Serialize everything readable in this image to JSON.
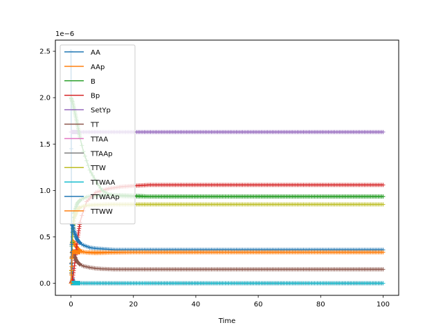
{
  "chart_data": {
    "type": "line",
    "title": "",
    "xlabel": "Time",
    "ylabel": "",
    "y_offset_label": "1e−6",
    "xlim": [
      -5,
      105
    ],
    "ylim": [
      -1.3e-07,
      2.62e-06
    ],
    "x_ticks": [
      0,
      20,
      40,
      60,
      80,
      100
    ],
    "x_tick_labels": [
      "0",
      "20",
      "40",
      "60",
      "80",
      "100"
    ],
    "y_ticks": [
      0.0,
      5e-07,
      1e-06,
      1.5e-06,
      2e-06,
      2.5e-06
    ],
    "y_tick_labels": [
      "0.0",
      "0.5",
      "1.0",
      "1.5",
      "2.0",
      "2.5"
    ],
    "grid": false,
    "legend": "upper-left",
    "series": [
      {
        "name": "AA",
        "color": "#1f77b4",
        "marker": "+",
        "x": [
          0,
          0.2,
          0.5,
          1,
          2,
          5,
          10,
          20,
          40,
          60,
          80,
          100
        ],
        "y": [
          2.5e-06,
          4e-07,
          5e-08,
          5e-09,
          1e-09,
          0.0,
          0.0,
          0.0,
          0.0,
          0.0,
          0.0,
          0.0
        ]
      },
      {
        "name": "AAp",
        "color": "#ff7f0e",
        "marker": "+",
        "x": [
          0,
          0.3,
          0.6,
          1,
          2,
          3,
          5,
          8,
          12,
          20,
          40,
          60,
          80,
          100
        ],
        "y": [
          0.0,
          4.2e-07,
          4.6e-07,
          4.3e-07,
          3.8e-07,
          3.5e-07,
          3.3e-07,
          3.25e-07,
          3.3e-07,
          3.35e-07,
          3.35e-07,
          3.35e-07,
          3.35e-07,
          3.35e-07
        ]
      },
      {
        "name": "B",
        "color": "#2ca02c",
        "marker": "+",
        "x": [
          0,
          0.5,
          1,
          2,
          3,
          5,
          8,
          12,
          16,
          20,
          25,
          40,
          60,
          80,
          100
        ],
        "y": [
          0.0,
          5.5e-07,
          7.5e-07,
          8.6e-07,
          9e-07,
          9.3e-07,
          9.45e-07,
          9.5e-07,
          9.5e-07,
          9.45e-07,
          9.35e-07,
          9.35e-07,
          9.35e-07,
          9.35e-07,
          9.35e-07
        ]
      },
      {
        "name": "Bp",
        "color": "#d62728",
        "marker": "+",
        "x": [
          0,
          0.5,
          1,
          2,
          3,
          5,
          8,
          12,
          16,
          20,
          25,
          40,
          60,
          80,
          100
        ],
        "y": [
          0.0,
          4e-08,
          1.6e-07,
          4.5e-07,
          6.8e-07,
          8.8e-07,
          9.8e-07,
          1.02e-06,
          1.04e-06,
          1.05e-06,
          1.06e-06,
          1.06e-06,
          1.06e-06,
          1.06e-06,
          1.06e-06
        ]
      },
      {
        "name": "SetYp",
        "color": "#9467bd",
        "marker": "+",
        "x": [
          0,
          20,
          40,
          60,
          80,
          100
        ],
        "y": [
          1.63e-06,
          1.63e-06,
          1.63e-06,
          1.63e-06,
          1.63e-06,
          1.63e-06
        ]
      },
      {
        "name": "TT",
        "color": "#8c564b",
        "marker": "+",
        "x": [
          0,
          0.3,
          0.6,
          1,
          1.5,
          2,
          3,
          4,
          6,
          8,
          10,
          14,
          20,
          40,
          60,
          80,
          100
        ],
        "y": [
          0.0,
          3.3e-07,
          3.5e-07,
          3e-07,
          2.6e-07,
          2.3e-07,
          2e-07,
          1.85e-07,
          1.7e-07,
          1.6e-07,
          1.55e-07,
          1.5e-07,
          1.5e-07,
          1.5e-07,
          1.5e-07,
          1.5e-07,
          1.5e-07
        ]
      },
      {
        "name": "TTAA",
        "color": "#e377c2",
        "marker": "+",
        "x": [
          0,
          0.3,
          1,
          3,
          10,
          20,
          40,
          60,
          80,
          100
        ],
        "y": [
          0.0,
          3e-09,
          2e-09,
          1e-09,
          0.0,
          0.0,
          0.0,
          0.0,
          0.0,
          0.0
        ]
      },
      {
        "name": "TTAAp",
        "color": "#7f7f7f",
        "marker": "+",
        "x": [
          0,
          0.3,
          1,
          3,
          10,
          20,
          40,
          60,
          80,
          100
        ],
        "y": [
          0.0,
          2e-09,
          2e-09,
          1e-09,
          0.0,
          0.0,
          0.0,
          0.0,
          0.0,
          0.0
        ]
      },
      {
        "name": "TTW",
        "color": "#bcbd22",
        "marker": "+",
        "x": [
          0,
          0.3,
          0.7,
          1.2,
          2,
          3,
          5,
          8,
          12,
          20,
          40,
          60,
          80,
          100
        ],
        "y": [
          0.0,
          4e-07,
          6e-07,
          7.2e-07,
          7.9e-07,
          8.2e-07,
          8.4e-07,
          8.45e-07,
          8.5e-07,
          8.5e-07,
          8.5e-07,
          8.5e-07,
          8.5e-07,
          8.5e-07
        ]
      },
      {
        "name": "TTWAA",
        "color": "#17becf",
        "marker": "+",
        "x": [
          0,
          0.3,
          1,
          3,
          10,
          20,
          40,
          60,
          80,
          100
        ],
        "y": [
          0.0,
          3e-09,
          2e-09,
          1e-09,
          0.0,
          0.0,
          0.0,
          0.0,
          0.0,
          0.0
        ]
      },
      {
        "name": "TTWAAp",
        "color": "#1f77b4",
        "marker": "+",
        "x": [
          0,
          0.3,
          0.6,
          1,
          1.5,
          2,
          3,
          4,
          6,
          8,
          10,
          14,
          20,
          40,
          60,
          80,
          100
        ],
        "y": [
          0.0,
          6.3e-07,
          6.2e-07,
          5.6e-07,
          5.1e-07,
          4.7e-07,
          4.3e-07,
          4.1e-07,
          3.85e-07,
          3.75e-07,
          3.7e-07,
          3.6e-07,
          3.6e-07,
          3.6e-07,
          3.6e-07,
          3.6e-07,
          3.6e-07
        ]
      },
      {
        "name": "TTWW",
        "color": "#ff7f0e",
        "marker": "+",
        "x": [
          0,
          0.3,
          0.6,
          1,
          2,
          3,
          5,
          8,
          12,
          20,
          40,
          60,
          80,
          100
        ],
        "y": [
          0.0,
          2.7e-07,
          3.4e-07,
          3.4e-07,
          3.35e-07,
          3.35e-07,
          3.35e-07,
          3.35e-07,
          3.35e-07,
          3.35e-07,
          3.35e-07,
          3.35e-07,
          3.35e-07,
          3.35e-07
        ]
      },
      {
        "name": "",
        "color": "#2ca02c",
        "marker": "+",
        "in_legend": false,
        "x": [
          0,
          0.5,
          1,
          2,
          3,
          4,
          5,
          6,
          8,
          10,
          12,
          15,
          20
        ],
        "y": [
          2e-06,
          1.95e-06,
          1.88e-06,
          1.72e-06,
          1.55e-06,
          1.42e-06,
          1.32e-06,
          1.22e-06,
          1.1e-06,
          1e-06,
          9.6e-07,
          9.4e-07,
          9.35e-07
        ]
      }
    ]
  }
}
